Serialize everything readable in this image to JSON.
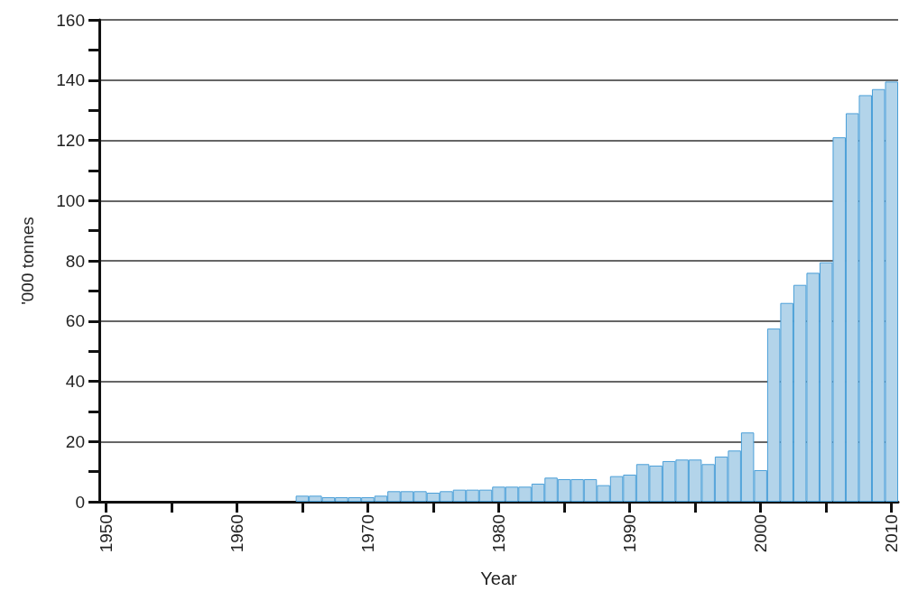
{
  "chart_data": {
    "type": "bar",
    "xlabel": "Year",
    "ylabel": "'000 tonnes",
    "x": [
      1965,
      1966,
      1967,
      1968,
      1969,
      1970,
      1971,
      1972,
      1973,
      1974,
      1975,
      1976,
      1977,
      1978,
      1979,
      1980,
      1981,
      1982,
      1983,
      1984,
      1985,
      1986,
      1987,
      1988,
      1989,
      1990,
      1991,
      1992,
      1993,
      1994,
      1995,
      1996,
      1997,
      1998,
      1999,
      2000,
      2001,
      2002,
      2003,
      2004,
      2005,
      2006,
      2007,
      2008,
      2009,
      2010
    ],
    "series": [
      {
        "color": "#b3d4ea",
        "values": [
          2,
          2,
          1.5,
          1.5,
          1.5,
          1.5,
          2,
          3.5,
          3.5,
          3.5,
          3,
          3.5,
          4,
          4,
          4,
          5,
          5,
          5,
          6,
          8,
          7.5,
          7.5,
          7.5,
          5.5,
          8.5,
          9,
          12.5,
          12,
          13.5,
          14,
          14,
          12.5,
          15,
          17,
          23,
          10.5,
          57.5,
          66,
          72,
          76,
          79.5,
          121,
          129,
          135,
          137,
          139.5
        ]
      }
    ],
    "xlim": [
      1949.5,
      2010.5
    ],
    "xticks": [
      1950,
      {
        "value": 1955,
        "label": null
      },
      1960,
      {
        "value": 1965,
        "label": null
      },
      1970,
      {
        "value": 1975,
        "label": null
      },
      1980,
      {
        "value": 1985,
        "label": null
      },
      1990,
      {
        "value": 1995,
        "label": null
      },
      2000,
      {
        "value": 2005,
        "label": null
      },
      2010
    ],
    "ylim": [
      0,
      160
    ],
    "yticks": [
      0,
      {
        "value": 10,
        "label": null
      },
      20,
      {
        "value": 30,
        "label": null
      },
      40,
      {
        "value": 50,
        "label": null
      },
      60,
      {
        "value": 70,
        "label": null
      },
      80,
      {
        "value": 90,
        "label": null
      },
      100,
      {
        "value": 110,
        "label": null
      },
      120,
      {
        "value": 130,
        "label": null
      },
      140,
      {
        "value": 150,
        "label": null
      },
      160
    ],
    "grid": "y"
  }
}
